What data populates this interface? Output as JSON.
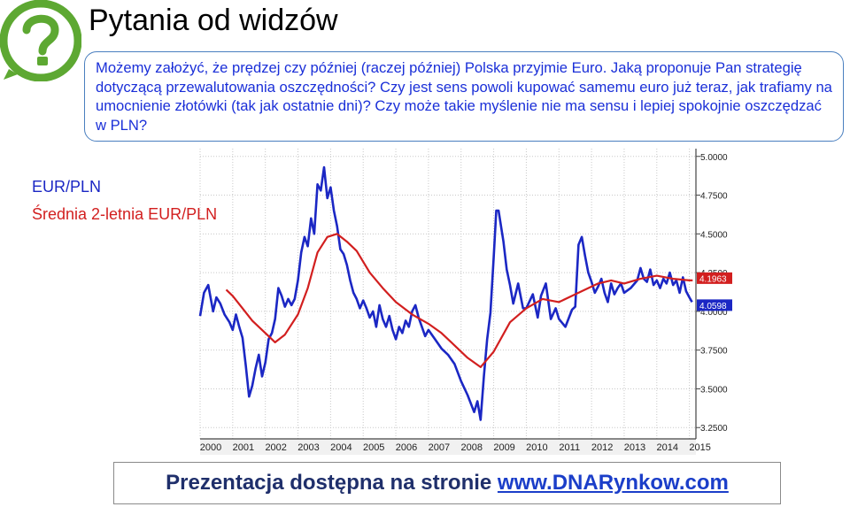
{
  "page": {
    "title": "Pytania od widzów",
    "question": "Możemy założyć, że prędzej czy później (raczej później) Polska przyjmie Euro. Jaką proponuje Pan strategię dotyczącą przewalutowania oszczędności? Czy jest sens powoli kupować samemu euro już teraz, jak trafiamy na umocnienie złotówki (tak jak ostatnie dni)? Czy może takie myślenie nie ma sensu i lepiej spokojnie oszczędzać w PLN?",
    "footer_text": "Prezentacja dostępna na stronie ",
    "footer_link": "www.DNARynkow.com"
  },
  "colors": {
    "accent_blue": "#1b27c4",
    "accent_red": "#d21f1f",
    "logo_green": "#5da832"
  },
  "chart_data": {
    "type": "line",
    "x_range": [
      2000,
      2015.2
    ],
    "ylim": [
      3.2,
      5.05
    ],
    "grid": true,
    "legend_placement": "left",
    "y_ticks": [
      "5.0000",
      "4.7500",
      "4.5000",
      "4.2500",
      "4.0000",
      "3.7500",
      "3.5000",
      "3.2500"
    ],
    "x_ticks": [
      "2000",
      "2001",
      "2002",
      "2003",
      "2004",
      "2005",
      "2006",
      "2007",
      "2008",
      "2009",
      "2010",
      "2011",
      "2012",
      "2013",
      "2014",
      "2015"
    ],
    "last_value_labels": [
      "4.1963",
      "4.0598"
    ],
    "series": [
      {
        "name": "EUR/PLN",
        "color": "#1b27c4",
        "x": [
          2000.0,
          2000.12,
          2000.25,
          2000.4,
          2000.5,
          2000.62,
          2000.75,
          2000.9,
          2001.0,
          2001.1,
          2001.2,
          2001.3,
          2001.4,
          2001.5,
          2001.6,
          2001.7,
          2001.8,
          2001.9,
          2002.0,
          2002.1,
          2002.2,
          2002.3,
          2002.4,
          2002.5,
          2002.6,
          2002.7,
          2002.8,
          2002.9,
          2003.0,
          2003.1,
          2003.2,
          2003.3,
          2003.4,
          2003.5,
          2003.6,
          2003.7,
          2003.8,
          2003.9,
          2004.0,
          2004.1,
          2004.2,
          2004.3,
          2004.4,
          2004.5,
          2004.6,
          2004.7,
          2004.8,
          2004.9,
          2005.0,
          2005.1,
          2005.2,
          2005.3,
          2005.4,
          2005.5,
          2005.6,
          2005.7,
          2005.8,
          2005.9,
          2006.0,
          2006.1,
          2006.2,
          2006.3,
          2006.4,
          2006.5,
          2006.6,
          2006.7,
          2006.8,
          2006.9,
          2007.0,
          2007.2,
          2007.4,
          2007.6,
          2007.8,
          2008.0,
          2008.2,
          2008.4,
          2008.5,
          2008.6,
          2008.7,
          2008.8,
          2008.9,
          2009.0,
          2009.08,
          2009.15,
          2009.3,
          2009.4,
          2009.5,
          2009.6,
          2009.75,
          2009.9,
          2010.0,
          2010.2,
          2010.35,
          2010.45,
          2010.6,
          2010.75,
          2010.9,
          2011.0,
          2011.2,
          2011.4,
          2011.5,
          2011.6,
          2011.7,
          2011.8,
          2011.9,
          2012.0,
          2012.1,
          2012.2,
          2012.3,
          2012.4,
          2012.5,
          2012.6,
          2012.7,
          2012.8,
          2012.9,
          2013.0,
          2013.2,
          2013.4,
          2013.5,
          2013.6,
          2013.7,
          2013.8,
          2013.9,
          2014.0,
          2014.1,
          2014.2,
          2014.3,
          2014.4,
          2014.5,
          2014.6,
          2014.7,
          2014.8,
          2014.9,
          2015.0,
          2015.08
        ],
        "values": [
          3.97,
          4.12,
          4.17,
          4.0,
          4.09,
          4.05,
          3.98,
          3.93,
          3.88,
          3.98,
          3.9,
          3.83,
          3.65,
          3.45,
          3.52,
          3.63,
          3.72,
          3.58,
          3.67,
          3.82,
          3.86,
          3.95,
          4.15,
          4.1,
          4.03,
          4.08,
          4.04,
          4.08,
          4.2,
          4.38,
          4.48,
          4.42,
          4.6,
          4.5,
          4.82,
          4.78,
          4.93,
          4.73,
          4.8,
          4.65,
          4.55,
          4.4,
          4.37,
          4.3,
          4.2,
          4.12,
          4.08,
          4.02,
          4.07,
          4.02,
          3.96,
          4.0,
          3.9,
          4.04,
          3.95,
          3.9,
          3.97,
          3.88,
          3.82,
          3.9,
          3.86,
          3.94,
          3.9,
          4.0,
          4.04,
          3.96,
          3.9,
          3.84,
          3.88,
          3.82,
          3.76,
          3.72,
          3.66,
          3.55,
          3.46,
          3.35,
          3.42,
          3.3,
          3.58,
          3.82,
          3.99,
          4.35,
          4.65,
          4.65,
          4.45,
          4.27,
          4.17,
          4.05,
          4.18,
          4.02,
          4.02,
          4.11,
          3.96,
          4.1,
          4.18,
          3.95,
          4.02,
          3.95,
          3.9,
          4.01,
          4.03,
          4.43,
          4.48,
          4.36,
          4.25,
          4.19,
          4.12,
          4.16,
          4.21,
          4.12,
          4.06,
          4.18,
          4.11,
          4.15,
          4.18,
          4.12,
          4.15,
          4.2,
          4.28,
          4.21,
          4.19,
          4.27,
          4.17,
          4.2,
          4.15,
          4.21,
          4.18,
          4.25,
          4.17,
          4.2,
          4.12,
          4.22,
          4.13,
          4.09,
          4.06
        ]
      },
      {
        "name": "Średnia 2-letnia EUR/PLN",
        "color": "#d21f1f",
        "x": [
          2000.8,
          2001.0,
          2001.3,
          2001.6,
          2002.0,
          2002.3,
          2002.6,
          2003.0,
          2003.3,
          2003.6,
          2003.9,
          2004.2,
          2004.5,
          2004.8,
          2005.2,
          2005.6,
          2006.0,
          2006.5,
          2007.0,
          2007.4,
          2007.8,
          2008.2,
          2008.6,
          2009.0,
          2009.5,
          2010.0,
          2010.5,
          2011.0,
          2011.4,
          2011.8,
          2012.2,
          2012.6,
          2013.0,
          2013.5,
          2014.0,
          2014.5,
          2015.0,
          2015.1
        ],
        "values": [
          4.14,
          4.1,
          4.02,
          3.94,
          3.86,
          3.8,
          3.85,
          3.98,
          4.15,
          4.38,
          4.48,
          4.5,
          4.45,
          4.39,
          4.25,
          4.15,
          4.06,
          3.98,
          3.92,
          3.86,
          3.78,
          3.7,
          3.64,
          3.74,
          3.93,
          4.02,
          4.08,
          4.06,
          4.1,
          4.14,
          4.18,
          4.2,
          4.18,
          4.21,
          4.23,
          4.21,
          4.2,
          4.2
        ]
      }
    ]
  }
}
